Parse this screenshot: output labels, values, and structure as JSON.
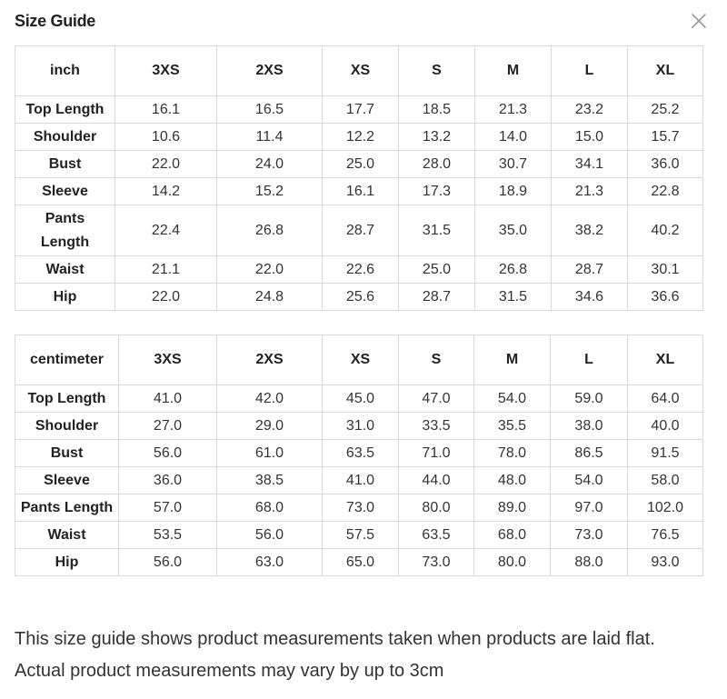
{
  "header": {
    "title": "Size Guide",
    "close_icon": "close-icon"
  },
  "tables": [
    {
      "unit_label": "inch",
      "sizes": [
        "3XS",
        "2XS",
        "XS",
        "S",
        "M",
        "L",
        "XL"
      ],
      "rows": [
        {
          "label": "Top Length",
          "values": [
            "16.1",
            "16.5",
            "17.7",
            "18.5",
            "21.3",
            "23.2",
            "25.2"
          ]
        },
        {
          "label": "Shoulder",
          "values": [
            "10.6",
            "11.4",
            "12.2",
            "13.2",
            "14.0",
            "15.0",
            "15.7"
          ]
        },
        {
          "label": "Bust",
          "values": [
            "22.0",
            "24.0",
            "25.0",
            "28.0",
            "30.7",
            "34.1",
            "36.0"
          ]
        },
        {
          "label": "Sleeve",
          "values": [
            "14.2",
            "15.2",
            "16.1",
            "17.3",
            "18.9",
            "21.3",
            "22.8"
          ]
        },
        {
          "label": "Pants Length",
          "values": [
            "22.4",
            "26.8",
            "28.7",
            "31.5",
            "35.0",
            "38.2",
            "40.2"
          ]
        },
        {
          "label": "Waist",
          "values": [
            "21.1",
            "22.0",
            "22.6",
            "25.0",
            "26.8",
            "28.7",
            "30.1"
          ]
        },
        {
          "label": "Hip",
          "values": [
            "22.0",
            "24.8",
            "25.6",
            "28.7",
            "31.5",
            "34.6",
            "36.6"
          ]
        }
      ]
    },
    {
      "unit_label": "centimeter",
      "sizes": [
        "3XS",
        "2XS",
        "XS",
        "S",
        "M",
        "L",
        "XL"
      ],
      "rows": [
        {
          "label": "Top Length",
          "values": [
            "41.0",
            "42.0",
            "45.0",
            "47.0",
            "54.0",
            "59.0",
            "64.0"
          ]
        },
        {
          "label": "Shoulder",
          "values": [
            "27.0",
            "29.0",
            "31.0",
            "33.5",
            "35.5",
            "38.0",
            "40.0"
          ]
        },
        {
          "label": "Bust",
          "values": [
            "56.0",
            "61.0",
            "63.5",
            "71.0",
            "78.0",
            "86.5",
            "91.5"
          ]
        },
        {
          "label": "Sleeve",
          "values": [
            "36.0",
            "38.5",
            "41.0",
            "44.0",
            "48.0",
            "54.0",
            "58.0"
          ]
        },
        {
          "label": "Pants Length",
          "values": [
            "57.0",
            "68.0",
            "73.0",
            "80.0",
            "89.0",
            "97.0",
            "102.0"
          ]
        },
        {
          "label": "Waist",
          "values": [
            "53.5",
            "56.0",
            "57.5",
            "63.5",
            "68.0",
            "73.0",
            "76.5"
          ]
        },
        {
          "label": "Hip",
          "values": [
            "56.0",
            "63.0",
            "65.0",
            "73.0",
            "80.0",
            "88.0",
            "93.0"
          ]
        }
      ]
    }
  ],
  "footnote": "This size guide shows product measurements taken when products are laid flat. Actual product measurements may vary by up to 3cm"
}
